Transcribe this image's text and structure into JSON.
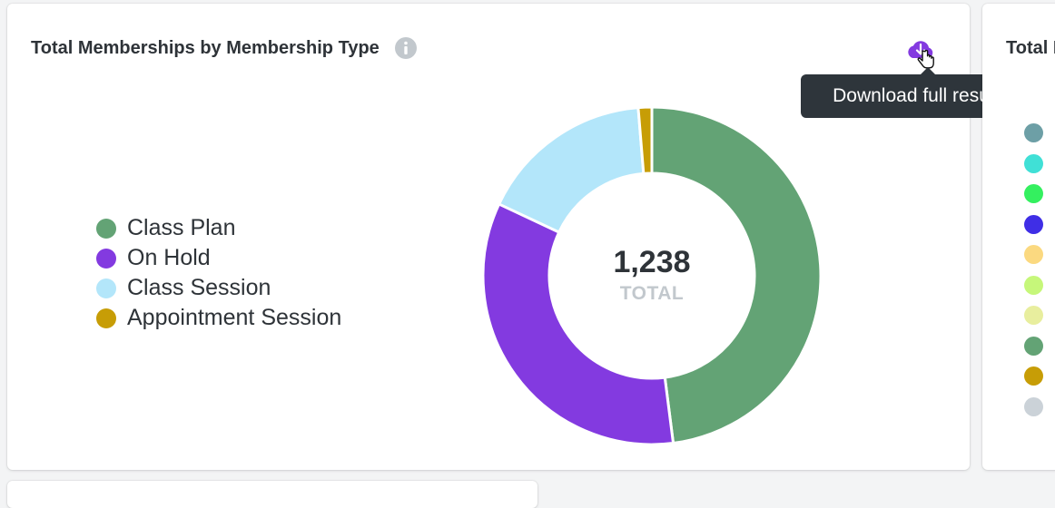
{
  "main_card": {
    "title": "Total Memberships by Membership Type",
    "tooltip": "Download full results"
  },
  "chart_data": {
    "type": "pie",
    "donut": true,
    "categories": [
      "Class Plan",
      "On Hold",
      "Class Session",
      "Appointment Session"
    ],
    "values": [
      594,
      421,
      207,
      16
    ],
    "colors": [
      "#63a375",
      "#833ae0",
      "#b3e6fa",
      "#c79d06"
    ],
    "center_value": "1,238",
    "center_label": "TOTAL",
    "legend_position": "left"
  },
  "right_card": {
    "title": "Total I",
    "dot_colors": [
      "#6d9fa6",
      "#40e0d6",
      "#34f05f",
      "#3f2ee6",
      "#fbd980",
      "#c6f77a",
      "#e8ee9e",
      "#63a375",
      "#c79d06",
      "#cbd2d8"
    ]
  }
}
